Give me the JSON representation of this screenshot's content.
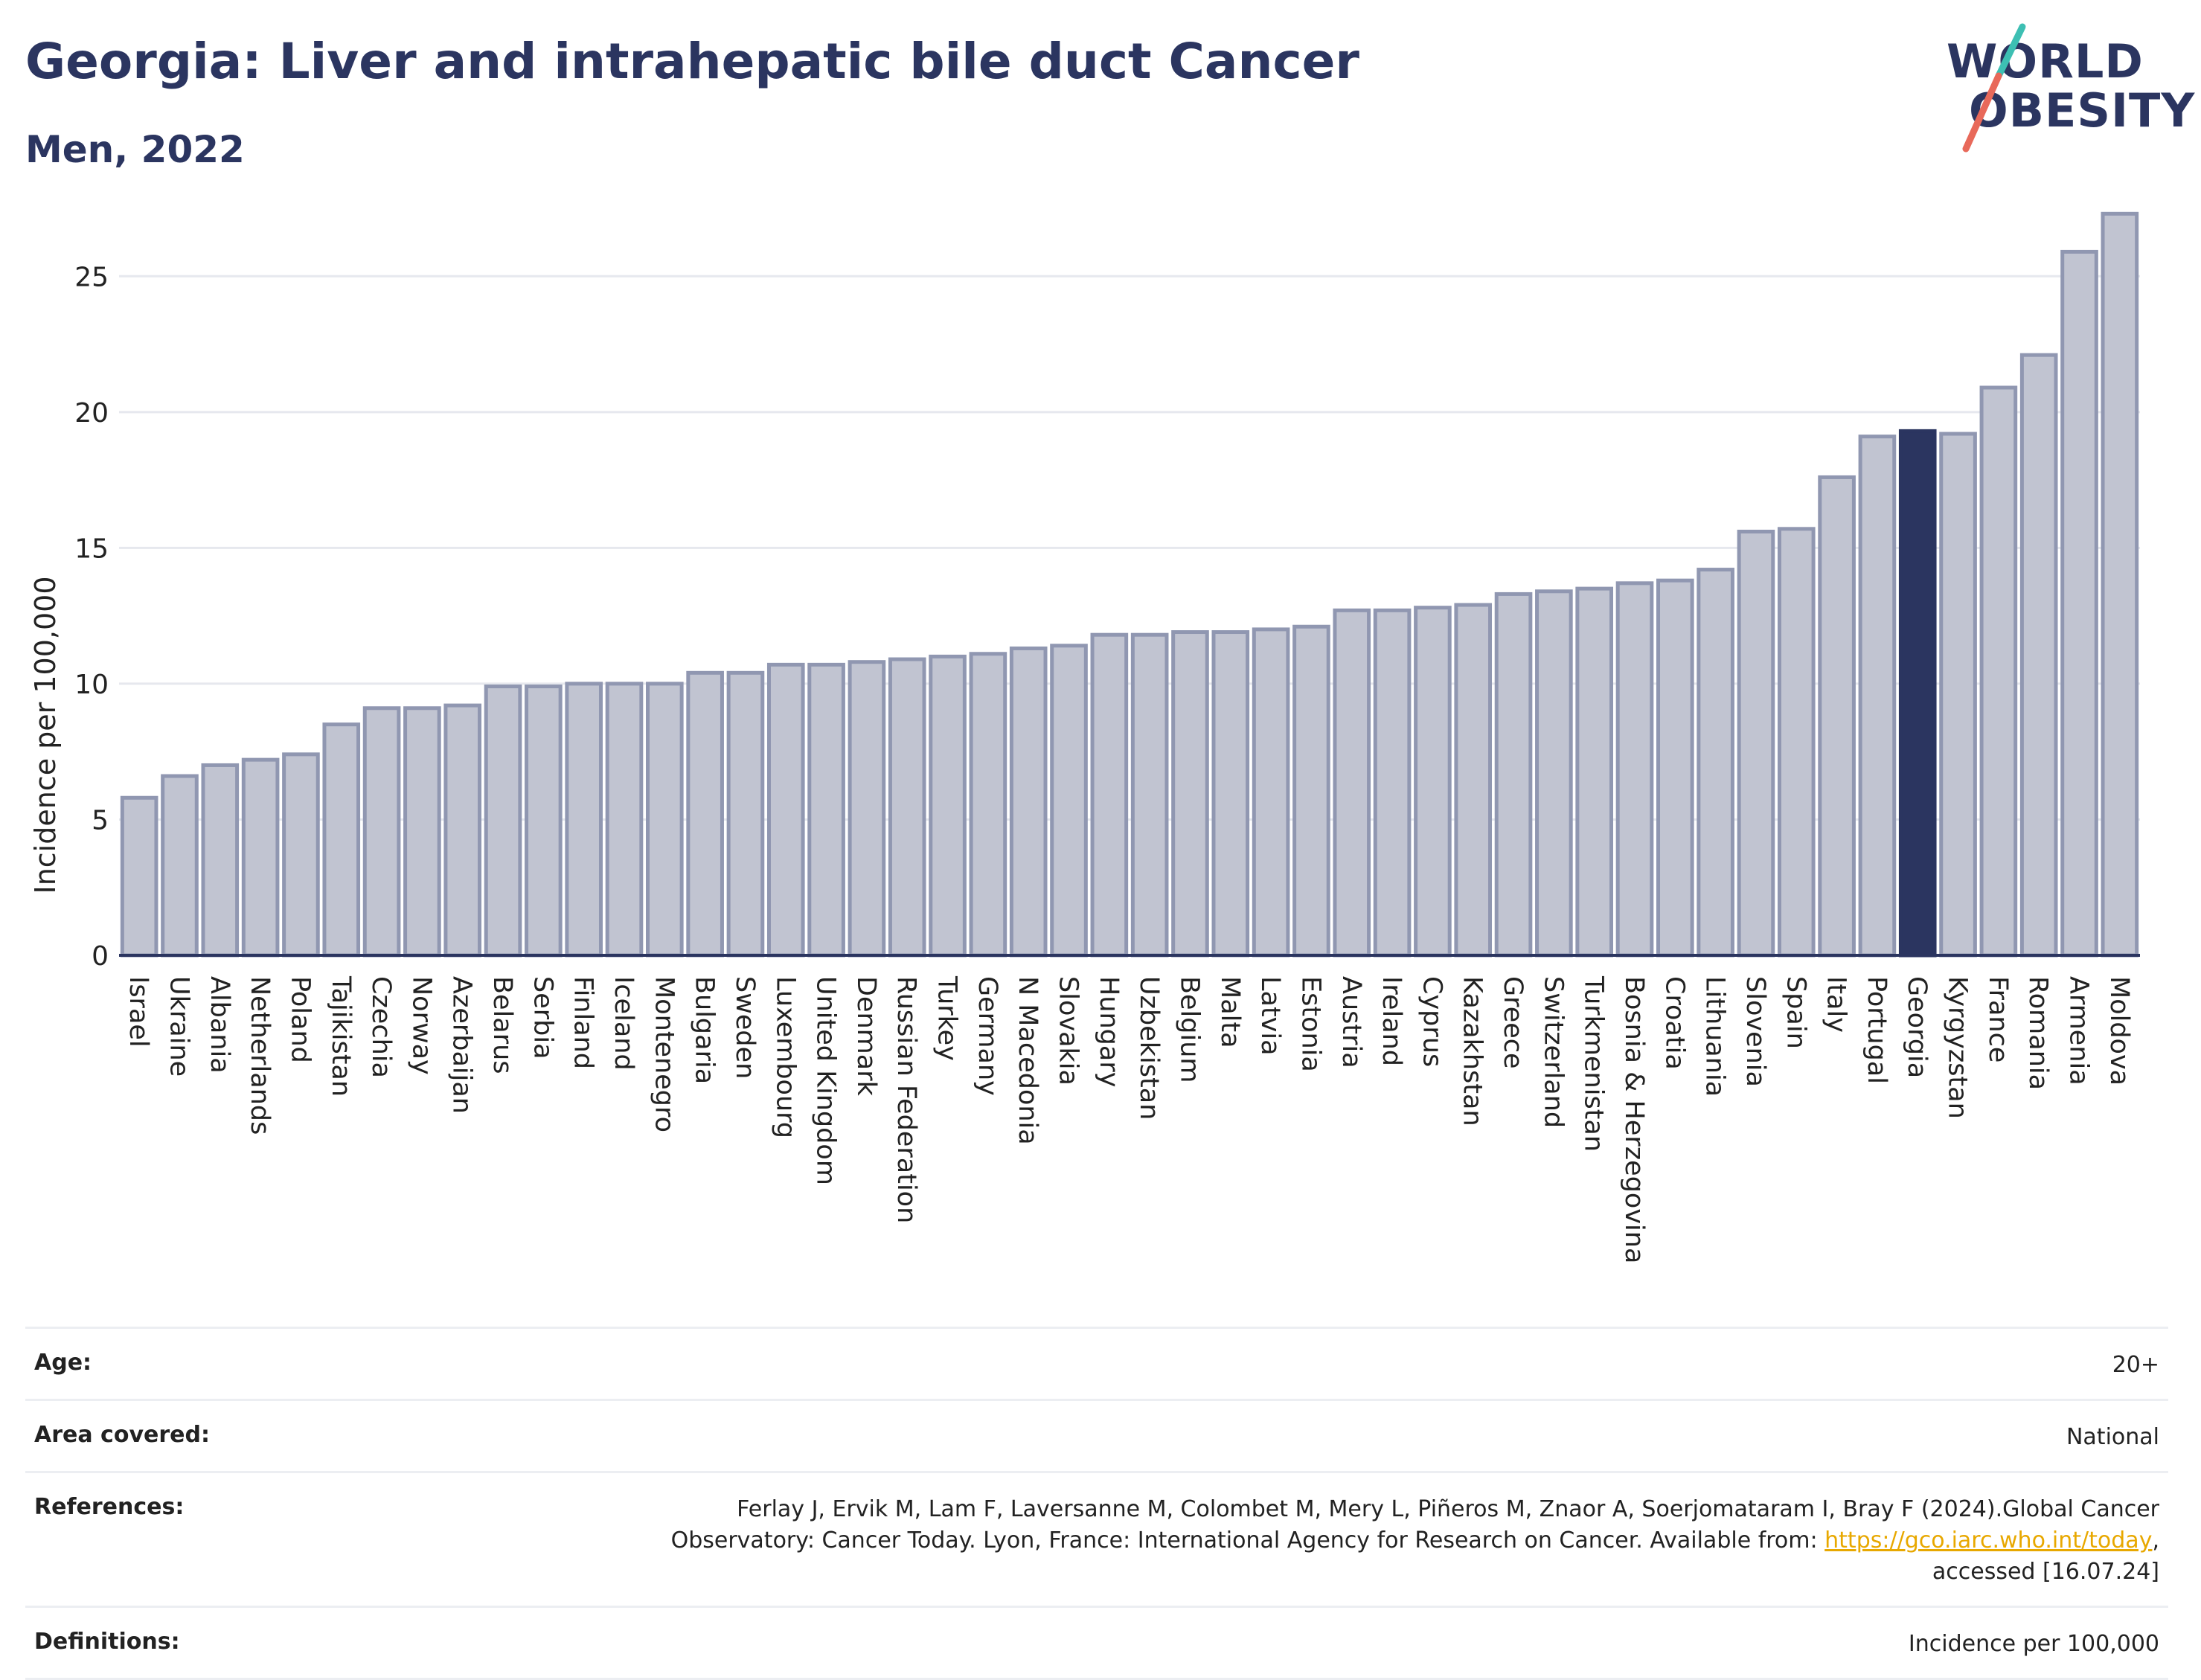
{
  "header": {
    "title": "Georgia: Liver and intrahepatic bile duct Cancer",
    "subtitle": "Men, 2022"
  },
  "logo": {
    "line1": "WORLD",
    "line2": "OBESITY",
    "colors": {
      "text": "#2b3560",
      "slash_top": "#3dbfb3",
      "slash_bottom": "#e8695a"
    }
  },
  "chart_data": {
    "type": "bar",
    "ylabel": "Incidence per 100,000",
    "xlabel": "",
    "ylim": [
      0,
      27.5
    ],
    "yticks": [
      0,
      5,
      10,
      15,
      20,
      25
    ],
    "grid": true,
    "highlight": "Georgia",
    "colors": {
      "bar": "#c1c4d1",
      "bar_edge": "#9097b1",
      "highlight": "#2b3560",
      "grid": "#e6e8ee"
    },
    "categories": [
      "Israel",
      "Ukraine",
      "Albania",
      "Netherlands",
      "Poland",
      "Tajikistan",
      "Czechia",
      "Norway",
      "Azerbaijan",
      "Belarus",
      "Serbia",
      "Finland",
      "Iceland",
      "Montenegro",
      "Bulgaria",
      "Sweden",
      "Luxembourg",
      "United Kingdom",
      "Denmark",
      "Russian Federation",
      "Turkey",
      "Germany",
      "N Macedonia",
      "Slovakia",
      "Hungary",
      "Uzbekistan",
      "Belgium",
      "Malta",
      "Latvia",
      "Estonia",
      "Austria",
      "Ireland",
      "Cyprus",
      "Kazakhstan",
      "Greece",
      "Switzerland",
      "Turkmenistan",
      "Bosnia & Herzegovina",
      "Croatia",
      "Lithuania",
      "Slovenia",
      "Spain",
      "Italy",
      "Portugal",
      "Georgia",
      "Kyrgyzstan",
      "France",
      "Romania",
      "Armenia",
      "Moldova"
    ],
    "values": [
      5.8,
      6.6,
      7.0,
      7.2,
      7.4,
      8.5,
      9.1,
      9.1,
      9.2,
      9.9,
      9.9,
      10.0,
      10.0,
      10.0,
      10.4,
      10.4,
      10.7,
      10.7,
      10.8,
      10.9,
      11.0,
      11.1,
      11.3,
      11.4,
      11.8,
      11.8,
      11.9,
      11.9,
      12.0,
      12.1,
      12.7,
      12.7,
      12.8,
      12.9,
      13.3,
      13.4,
      13.5,
      13.7,
      13.8,
      14.2,
      15.6,
      15.7,
      17.6,
      19.1,
      19.3,
      19.2,
      20.9,
      22.1,
      25.9,
      27.3
    ]
  },
  "info": {
    "age_label": "Age:",
    "age_value": "20+",
    "area_label": "Area covered:",
    "area_value": "National",
    "references_label": "References:",
    "references_line1": "Ferlay J, Ervik M, Lam F, Laversanne M, Colombet M, Mery L, Piñeros M, Znaor A, Soerjomataram I, Bray F (2024).Global Cancer",
    "references_line2_pre": "Observatory: Cancer Today. Lyon, France: International Agency for Research on Cancer. Available from: ",
    "references_link": "https://gco.iarc.who.int/today",
    "references_line2_post": ",",
    "references_line3": "accessed [16.07.24]",
    "definitions_label": "Definitions:",
    "definitions_value": "Incidence per 100,000"
  }
}
